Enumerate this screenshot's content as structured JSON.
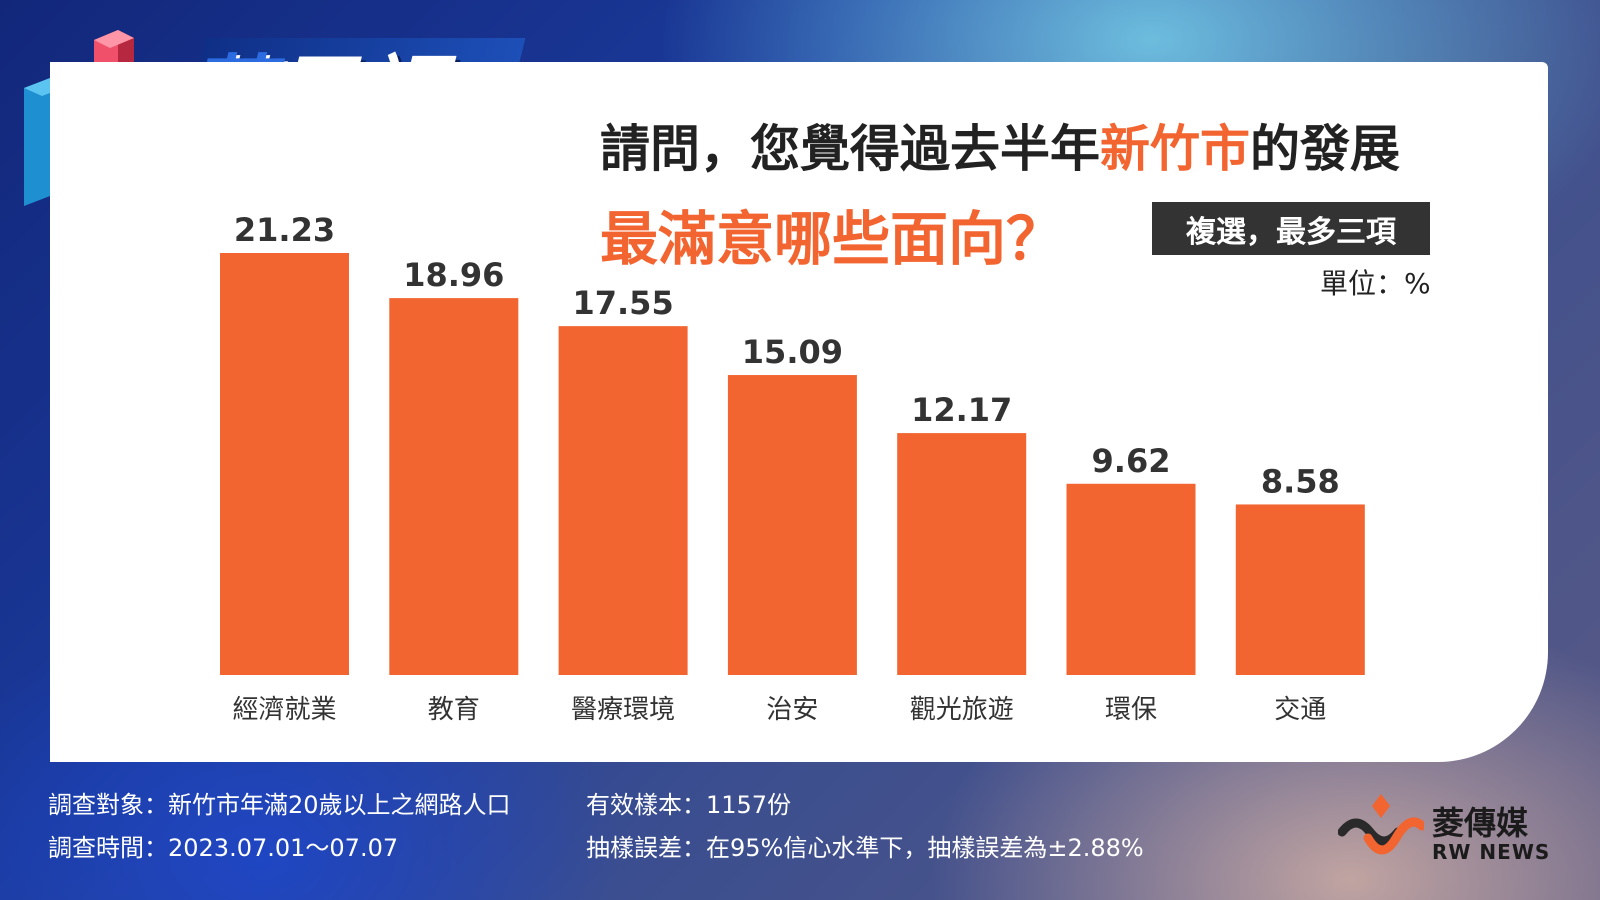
{
  "brand": {
    "name_part1": "菱",
    "name_part2": "民調"
  },
  "title": {
    "line1_before": "請問，您覺得過去半年",
    "line1_highlight": "新竹市",
    "line1_after": "的發展",
    "line2": "最滿意哪些面向？"
  },
  "tag": "複選，最多三項",
  "unit_label": "單位：%",
  "colors": {
    "bar": "#f26430",
    "accent": "#f26430",
    "dark": "#333333"
  },
  "chart_data": {
    "type": "bar",
    "categories": [
      "經濟就業",
      "教育",
      "醫療環境",
      "治安",
      "觀光旅遊",
      "環保",
      "交通"
    ],
    "values": [
      21.23,
      18.96,
      17.55,
      15.09,
      12.17,
      9.62,
      8.58
    ],
    "data_labels": [
      "21.23",
      "18.96",
      "17.55",
      "15.09",
      "12.17",
      "9.62",
      "8.58"
    ],
    "unit": "%",
    "ylim": [
      0,
      21.23
    ],
    "grid": false,
    "legend": "none"
  },
  "footer": {
    "target": "調查對象：新竹市年滿20歲以上之網路人口",
    "period": "調查時間：2023.07.01～07.07",
    "sample": "有效樣本：1157份",
    "error": "抽樣誤差：在95%信心水準下，抽樣誤差為±2.88%"
  },
  "publisher": {
    "name": "菱傳媒",
    "sub": "RW NEWS"
  }
}
